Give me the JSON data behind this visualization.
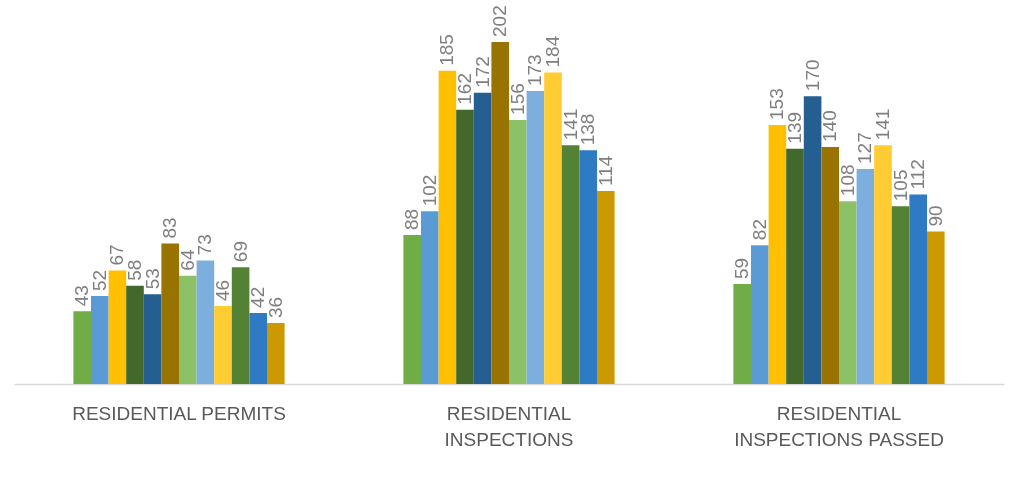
{
  "chart_data": {
    "type": "bar",
    "categories": [
      "RESIDENTIAL PERMITS",
      "RESIDENTIAL INSPECTIONS",
      "RESIDENTIAL INSPECTIONS PASSED"
    ],
    "series": [
      {
        "color": "#70ad47",
        "values": [
          43,
          88,
          59
        ]
      },
      {
        "color": "#5b9bd5",
        "values": [
          52,
          102,
          82
        ]
      },
      {
        "color": "#ffc000",
        "values": [
          67,
          185,
          153
        ]
      },
      {
        "color": "#43682b",
        "values": [
          58,
          162,
          139
        ]
      },
      {
        "color": "#255e91",
        "values": [
          53,
          172,
          170
        ]
      },
      {
        "color": "#997300",
        "values": [
          83,
          202,
          140
        ]
      },
      {
        "color": "#8cc168",
        "values": [
          64,
          156,
          108
        ]
      },
      {
        "color": "#7cafdd",
        "values": [
          73,
          173,
          127
        ]
      },
      {
        "color": "#ffcd33",
        "values": [
          46,
          184,
          141
        ]
      },
      {
        "color": "#548235",
        "values": [
          69,
          141,
          105
        ]
      },
      {
        "color": "#2e7bc4",
        "values": [
          42,
          138,
          112
        ]
      },
      {
        "color": "#cc9a00",
        "values": [
          36,
          114,
          90
        ]
      }
    ],
    "data_labels": true,
    "grid": false,
    "legend": false
  }
}
